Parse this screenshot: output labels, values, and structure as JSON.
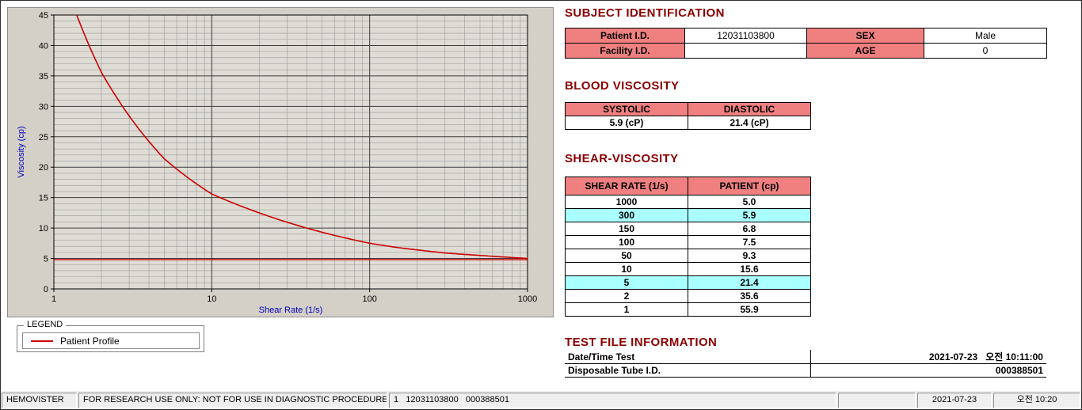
{
  "colors": {
    "heading_maroon": "#8b0000",
    "table_header_pink": "#f08080",
    "highlight_cyan": "#aaffff",
    "curve_red": "#cc0000",
    "axis_label_blue": "#0000bb"
  },
  "chart_data": {
    "type": "line",
    "x_scale": "log",
    "title": "",
    "xlabel": "Shear Rate (1/s)",
    "ylabel": "Viscosity (cp)",
    "xlim": [
      1,
      1000
    ],
    "ylim": [
      0,
      45
    ],
    "y_major_step": 5,
    "y_minor_step": 1,
    "x_ticks": [
      1,
      10,
      100,
      1000
    ],
    "grid": true,
    "legend_position": "below-left",
    "plot_bg": "#dfdcd5",
    "grid_minor_color": "#9b9b9b",
    "grid_major_color": "#3c3c3c",
    "series": [
      {
        "name": "Patient Profile",
        "color": "#cc0000",
        "x": [
          1,
          2,
          5,
          10,
          50,
          100,
          150,
          300,
          1000
        ],
        "y": [
          55.9,
          35.6,
          21.4,
          15.6,
          9.3,
          7.5,
          6.8,
          5.9,
          5.0
        ]
      }
    ],
    "reference_line_y": 4.8
  },
  "legend": {
    "title": "LEGEND",
    "entries": [
      {
        "label": "Patient Profile",
        "color": "#cc0000"
      }
    ]
  },
  "subject_identification": {
    "heading": "SUBJECT IDENTIFICATION",
    "rows": [
      {
        "label1": "Patient I.D.",
        "value1": "12031103800",
        "label2": "SEX",
        "value2": "Male"
      },
      {
        "label1": "Facility I.D.",
        "value1": "",
        "label2": "AGE",
        "value2": "0"
      }
    ]
  },
  "blood_viscosity": {
    "heading": "BLOOD VISCOSITY",
    "headers": [
      "SYSTOLIC",
      "DIASTOLIC"
    ],
    "values": [
      "5.9 (cP)",
      "21.4 (cP)"
    ]
  },
  "shear_viscosity": {
    "heading": "SHEAR-VISCOSITY",
    "headers": [
      "SHEAR RATE (1/s)",
      "PATIENT (cp)"
    ],
    "rows": [
      {
        "shear_rate": "1000",
        "patient": "5.0",
        "highlight": false
      },
      {
        "shear_rate": "300",
        "patient": "5.9",
        "highlight": true
      },
      {
        "shear_rate": "150",
        "patient": "6.8",
        "highlight": false
      },
      {
        "shear_rate": "100",
        "patient": "7.5",
        "highlight": false
      },
      {
        "shear_rate": "50",
        "patient": "9.3",
        "highlight": false
      },
      {
        "shear_rate": "10",
        "patient": "15.6",
        "highlight": false
      },
      {
        "shear_rate": "5",
        "patient": "21.4",
        "highlight": true
      },
      {
        "shear_rate": "2",
        "patient": "35.6",
        "highlight": false
      },
      {
        "shear_rate": "1",
        "patient": "55.9",
        "highlight": false
      }
    ]
  },
  "test_file_information": {
    "heading": "TEST FILE INFORMATION",
    "rows": [
      {
        "label": "Date/Time Test",
        "value": "2021-07-23   오전 10:11:00"
      },
      {
        "label": "Disposable Tube I.D.",
        "value": "000388501"
      }
    ]
  },
  "status_bar": {
    "items": [
      "HEMOVISTER",
      "FOR RESEARCH USE ONLY: NOT FOR USE IN DIAGNOSTIC PROCEDURES",
      "1   12031103800   000388501",
      "",
      "2021-07-23",
      "오전 10:20"
    ]
  }
}
